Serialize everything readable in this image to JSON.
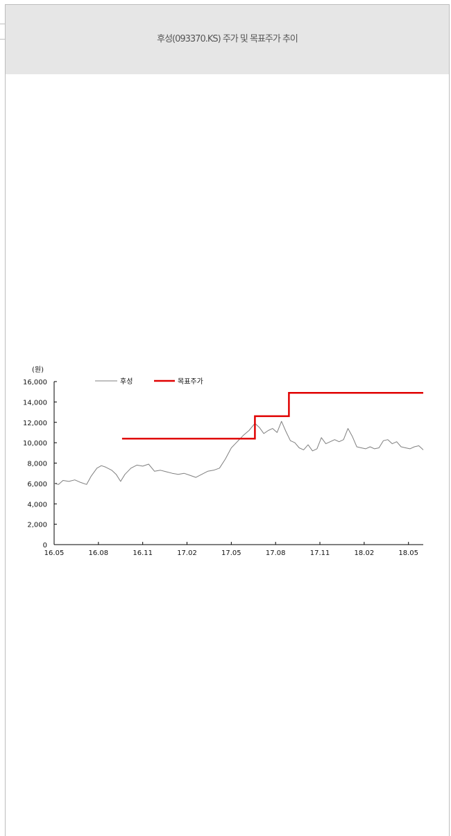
{
  "header": {
    "title": "후성(093370.KS) 주가 및 목표주가 추이"
  },
  "chart_data": {
    "type": "line",
    "title": "",
    "ylabel": "(원)",
    "xlabel": "",
    "ylim": [
      0,
      16000
    ],
    "yticks": [
      0,
      2000,
      4000,
      6000,
      8000,
      10000,
      12000,
      14000,
      16000
    ],
    "ytick_labels": [
      "0",
      "2,000",
      "4,000",
      "6,000",
      "8,000",
      "10,000",
      "12,000",
      "14,000",
      "16,000"
    ],
    "xtick_labels": [
      "16.05",
      "16.08",
      "16.11",
      "17.02",
      "17.05",
      "17.08",
      "17.11",
      "18.02",
      "18.05"
    ],
    "xlim_months": [
      0,
      25
    ],
    "grid": false,
    "legend_position": "top",
    "series": [
      {
        "name": "후성",
        "color": "#7f7f7f",
        "style": "thin",
        "x": [
          0,
          0.3,
          0.6,
          1.0,
          1.4,
          1.8,
          2.2,
          2.5,
          2.9,
          3.2,
          3.5,
          3.9,
          4.2,
          4.5,
          4.8,
          5.2,
          5.6,
          6.0,
          6.4,
          6.8,
          7.2,
          7.6,
          8.0,
          8.4,
          8.8,
          9.2,
          9.6,
          10.0,
          10.4,
          10.8,
          11.2,
          11.6,
          12.0,
          12.4,
          12.8,
          13.2,
          13.6,
          13.9,
          14.2,
          14.5,
          14.8,
          15.1,
          15.4,
          15.7,
          16.0,
          16.3,
          16.6,
          16.9,
          17.2,
          17.5,
          17.8,
          18.1,
          18.4,
          18.7,
          19.0,
          19.3,
          19.6,
          19.9,
          20.2,
          20.5,
          20.8,
          21.1,
          21.4,
          21.7,
          22.0,
          22.3,
          22.6,
          22.9,
          23.2,
          23.5,
          23.8,
          24.1,
          24.4,
          24.7,
          25.0
        ],
        "values": [
          6000,
          5900,
          6300,
          6200,
          6350,
          6100,
          5900,
          6700,
          7500,
          7750,
          7600,
          7300,
          6900,
          6200,
          6900,
          7500,
          7800,
          7700,
          7900,
          7200,
          7300,
          7150,
          7000,
          6900,
          7000,
          6800,
          6600,
          6900,
          7200,
          7300,
          7500,
          8400,
          9500,
          10100,
          10700,
          11200,
          11900,
          11500,
          10900,
          11200,
          11400,
          11000,
          12100,
          11100,
          10200,
          10000,
          9500,
          9300,
          9800,
          9200,
          9400,
          10500,
          9900,
          10100,
          10300,
          10100,
          10300,
          11400,
          10600,
          9600,
          9500,
          9400,
          9600,
          9400,
          9500,
          10200,
          10300,
          9900,
          10100,
          9600,
          9500,
          9400,
          9600,
          9700,
          9300
        ]
      },
      {
        "name": "목표주가",
        "color": "#e00000",
        "style": "thick-step",
        "x": [
          4.6,
          13.6,
          13.6,
          15.9,
          15.9,
          25.0
        ],
        "values": [
          10400,
          10400,
          12600,
          12600,
          14900,
          14900
        ]
      }
    ]
  }
}
